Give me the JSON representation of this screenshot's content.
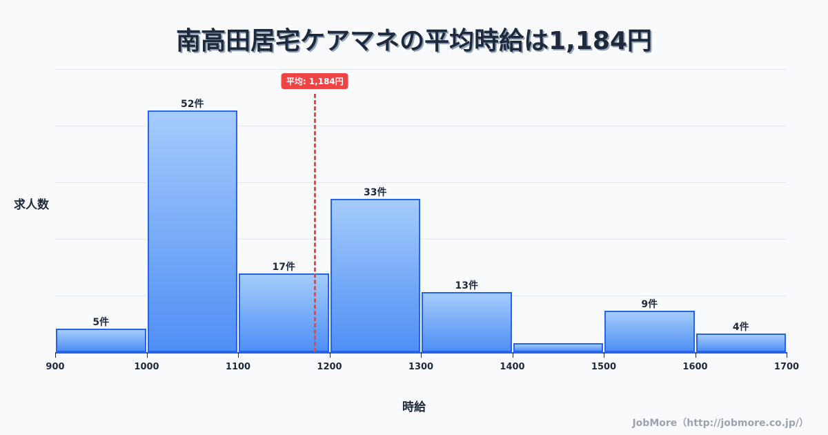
{
  "title": "南高田居宅ケアマネの平均時給は1,184円",
  "ylabel": "求人数",
  "xlabel": "時給",
  "credit": "JobMore（http://jobmore.co.jp/）",
  "mean_badge": "平均: 1,184円",
  "colors": {
    "bar_border": "#2563eb",
    "bar_top": "#a5cbfb",
    "bar_bottom": "#4f8ff5",
    "mean": "#ef4444",
    "text": "#1e293b"
  },
  "chart_data": {
    "type": "bar",
    "title": "南高田居宅ケアマネの平均時給は1,184円",
    "xlabel": "時給",
    "ylabel": "求人数",
    "bins": [
      [
        900,
        1000
      ],
      [
        1000,
        1100
      ],
      [
        1100,
        1200
      ],
      [
        1200,
        1300
      ],
      [
        1300,
        1400
      ],
      [
        1400,
        1500
      ],
      [
        1500,
        1600
      ],
      [
        1600,
        1700
      ]
    ],
    "categories": [
      "900-1000",
      "1000-1100",
      "1100-1200",
      "1200-1300",
      "1300-1400",
      "1400-1500",
      "1500-1600",
      "1600-1700"
    ],
    "values": [
      5,
      52,
      17,
      33,
      13,
      2,
      9,
      4
    ],
    "labels": [
      "5件",
      "52件",
      "17件",
      "33件",
      "13件",
      "",
      "9件",
      "4件"
    ],
    "x_ticks": [
      "900",
      "1000",
      "1100",
      "1200",
      "1300",
      "1400",
      "1500",
      "1600",
      "1700"
    ],
    "xlim": [
      900,
      1700
    ],
    "ylim": [
      0,
      61
    ],
    "mean": 1184,
    "mean_label": "平均: 1,184円",
    "grid": true,
    "legend": null
  }
}
